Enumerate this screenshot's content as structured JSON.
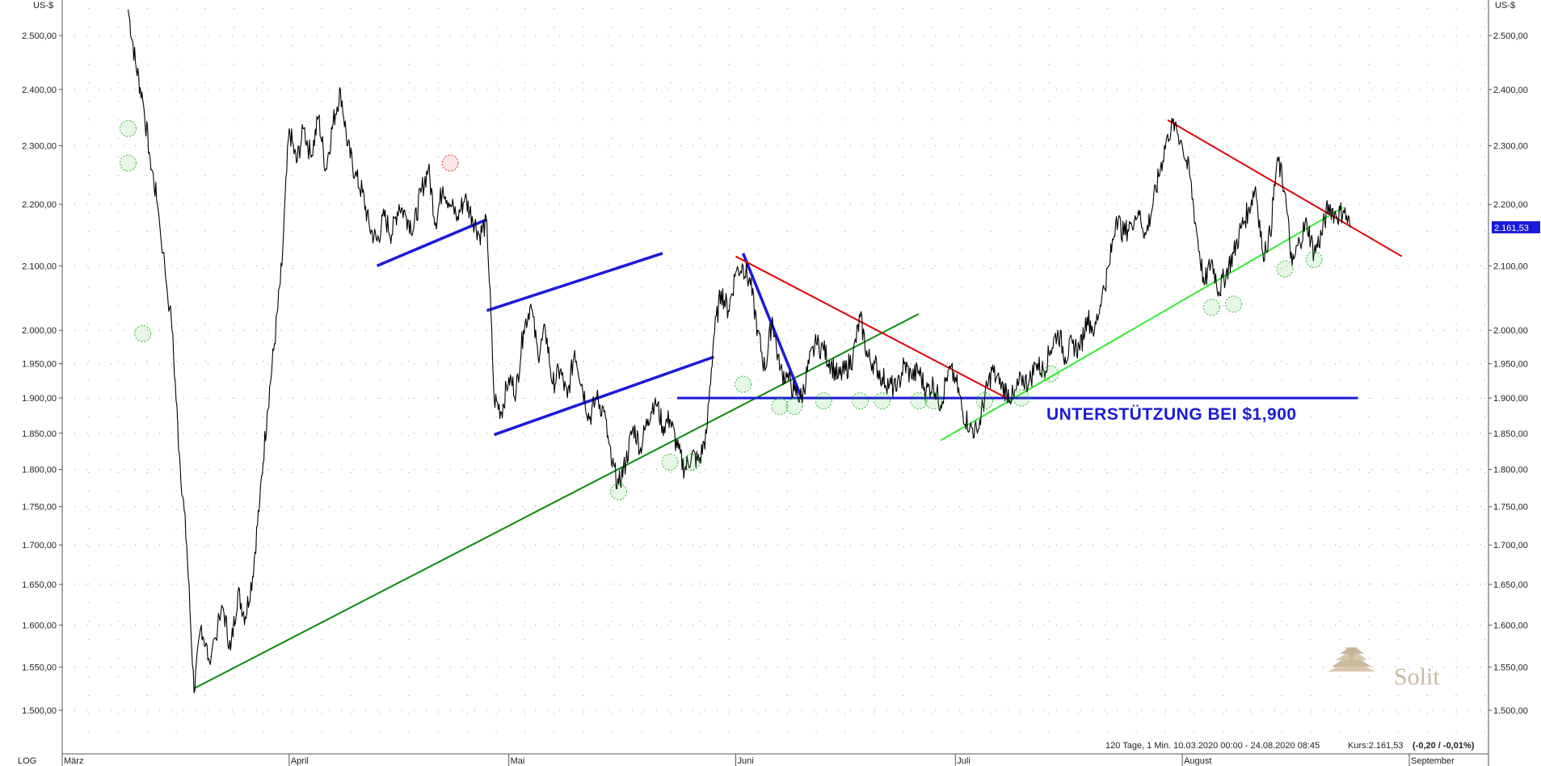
{
  "chart_data": {
    "type": "line",
    "title": "",
    "ylabel": "US-$",
    "ylabel_right": "US-$",
    "y_scale": "log",
    "scale_label": "LOG",
    "ylim": [
      1480,
      2560
    ],
    "y_ticks": [
      1500,
      1550,
      1600,
      1650,
      1700,
      1750,
      1800,
      1850,
      1900,
      1950,
      2000,
      2100,
      2200,
      2300,
      2400,
      2500
    ],
    "y_tick_labels": [
      "1.500,00",
      "1.550,00",
      "1.600,00",
      "1.650,00",
      "1.700,00",
      "1.750,00",
      "1.800,00",
      "1.850,00",
      "1.900,00",
      "1.950,00",
      "2.000,00",
      "2.100,00",
      "2.200,00",
      "2.300,00",
      "2.400,00",
      "2.500,00"
    ],
    "x_range": [
      "2020-03-10",
      "2020-09-02"
    ],
    "x_months": [
      {
        "label": "März",
        "date": "2020-03-01"
      },
      {
        "label": "April",
        "date": "2020-04-01"
      },
      {
        "label": "Mai",
        "date": "2020-05-01"
      },
      {
        "label": "Juni",
        "date": "2020-06-01"
      },
      {
        "label": "Juli",
        "date": "2020-07-01"
      },
      {
        "label": "August",
        "date": "2020-08-01"
      },
      {
        "label": "September",
        "date": "2020-09-01"
      }
    ],
    "grid": true,
    "series": [
      {
        "color": "#000000",
        "points": [
          [
            "2020-03-10",
            2550
          ],
          [
            "2020-03-11",
            2450
          ],
          [
            "2020-03-12",
            2380
          ],
          [
            "2020-03-13",
            2280
          ],
          [
            "2020-03-14",
            2200
          ],
          [
            "2020-03-16",
            2000
          ],
          [
            "2020-03-17",
            1820
          ],
          [
            "2020-03-18",
            1700
          ],
          [
            "2020-03-19",
            1520
          ],
          [
            "2020-03-20",
            1600
          ],
          [
            "2020-03-21",
            1560
          ],
          [
            "2020-03-23",
            1620
          ],
          [
            "2020-03-24",
            1570
          ],
          [
            "2020-03-25",
            1640
          ],
          [
            "2020-03-26",
            1610
          ],
          [
            "2020-03-27",
            1660
          ],
          [
            "2020-03-28",
            1760
          ],
          [
            "2020-03-29",
            1880
          ],
          [
            "2020-03-30",
            1980
          ],
          [
            "2020-03-31",
            2100
          ],
          [
            "2020-04-01",
            2330
          ],
          [
            "2020-04-02",
            2270
          ],
          [
            "2020-04-03",
            2330
          ],
          [
            "2020-04-04",
            2280
          ],
          [
            "2020-04-05",
            2350
          ],
          [
            "2020-04-06",
            2260
          ],
          [
            "2020-04-07",
            2340
          ],
          [
            "2020-04-08",
            2400
          ],
          [
            "2020-04-09",
            2300
          ],
          [
            "2020-04-10",
            2250
          ],
          [
            "2020-04-11",
            2220
          ],
          [
            "2020-04-12",
            2160
          ],
          [
            "2020-04-13",
            2140
          ],
          [
            "2020-04-14",
            2180
          ],
          [
            "2020-04-15",
            2150
          ],
          [
            "2020-04-16",
            2200
          ],
          [
            "2020-04-17",
            2180
          ],
          [
            "2020-04-18",
            2160
          ],
          [
            "2020-04-19",
            2220
          ],
          [
            "2020-04-20",
            2260
          ],
          [
            "2020-04-21",
            2170
          ],
          [
            "2020-04-22",
            2230
          ],
          [
            "2020-04-23",
            2200
          ],
          [
            "2020-04-24",
            2180
          ],
          [
            "2020-04-25",
            2210
          ],
          [
            "2020-04-26",
            2180
          ],
          [
            "2020-04-27",
            2150
          ],
          [
            "2020-04-28",
            2170
          ],
          [
            "2020-04-29",
            1900
          ],
          [
            "2020-04-30",
            1880
          ],
          [
            "2020-05-01",
            1930
          ],
          [
            "2020-05-02",
            1910
          ],
          [
            "2020-05-03",
            2000
          ],
          [
            "2020-05-04",
            2040
          ],
          [
            "2020-05-05",
            1960
          ],
          [
            "2020-05-06",
            2000
          ],
          [
            "2020-05-07",
            1920
          ],
          [
            "2020-05-08",
            1940
          ],
          [
            "2020-05-09",
            1900
          ],
          [
            "2020-05-10",
            1970
          ],
          [
            "2020-05-11",
            1920
          ],
          [
            "2020-05-12",
            1870
          ],
          [
            "2020-05-13",
            1900
          ],
          [
            "2020-05-14",
            1880
          ],
          [
            "2020-05-15",
            1810
          ],
          [
            "2020-05-16",
            1780
          ],
          [
            "2020-05-17",
            1810
          ],
          [
            "2020-05-18",
            1860
          ],
          [
            "2020-05-19",
            1830
          ],
          [
            "2020-05-20",
            1870
          ],
          [
            "2020-05-21",
            1900
          ],
          [
            "2020-05-22",
            1860
          ],
          [
            "2020-05-23",
            1870
          ],
          [
            "2020-05-24",
            1830
          ],
          [
            "2020-05-25",
            1800
          ],
          [
            "2020-05-26",
            1820
          ],
          [
            "2020-05-27",
            1810
          ],
          [
            "2020-05-28",
            1850
          ],
          [
            "2020-05-29",
            1990
          ],
          [
            "2020-05-30",
            2060
          ],
          [
            "2020-05-31",
            2030
          ],
          [
            "2020-06-01",
            2090
          ],
          [
            "2020-06-02",
            2100
          ],
          [
            "2020-06-03",
            2070
          ],
          [
            "2020-06-04",
            2000
          ],
          [
            "2020-06-05",
            1940
          ],
          [
            "2020-06-06",
            2020
          ],
          [
            "2020-06-07",
            1940
          ],
          [
            "2020-06-08",
            1930
          ],
          [
            "2020-06-09",
            1910
          ],
          [
            "2020-06-10",
            1900
          ],
          [
            "2020-06-11",
            1950
          ],
          [
            "2020-06-12",
            1980
          ],
          [
            "2020-06-13",
            1970
          ],
          [
            "2020-06-14",
            1950
          ],
          [
            "2020-06-15",
            1930
          ],
          [
            "2020-06-16",
            1940
          ],
          [
            "2020-06-17",
            1960
          ],
          [
            "2020-06-18",
            2020
          ],
          [
            "2020-06-19",
            1960
          ],
          [
            "2020-06-20",
            1950
          ],
          [
            "2020-06-21",
            1930
          ],
          [
            "2020-06-22",
            1920
          ],
          [
            "2020-06-23",
            1910
          ],
          [
            "2020-06-24",
            1950
          ],
          [
            "2020-06-25",
            1930
          ],
          [
            "2020-06-26",
            1940
          ],
          [
            "2020-06-27",
            1910
          ],
          [
            "2020-06-28",
            1920
          ],
          [
            "2020-06-29",
            1890
          ],
          [
            "2020-06-30",
            1940
          ],
          [
            "2020-07-01",
            1930
          ],
          [
            "2020-07-02",
            1880
          ],
          [
            "2020-07-03",
            1860
          ],
          [
            "2020-07-04",
            1850
          ],
          [
            "2020-07-05",
            1900
          ],
          [
            "2020-07-06",
            1940
          ],
          [
            "2020-07-07",
            1920
          ],
          [
            "2020-07-08",
            1910
          ],
          [
            "2020-07-09",
            1900
          ],
          [
            "2020-07-10",
            1930
          ],
          [
            "2020-07-11",
            1920
          ],
          [
            "2020-07-12",
            1950
          ],
          [
            "2020-07-13",
            1940
          ],
          [
            "2020-07-14",
            1970
          ],
          [
            "2020-07-15",
            2000
          ],
          [
            "2020-07-16",
            1960
          ],
          [
            "2020-07-17",
            1980
          ],
          [
            "2020-07-18",
            1970
          ],
          [
            "2020-07-19",
            2020
          ],
          [
            "2020-07-20",
            2000
          ],
          [
            "2020-07-21",
            2050
          ],
          [
            "2020-07-22",
            2100
          ],
          [
            "2020-07-23",
            2180
          ],
          [
            "2020-07-24",
            2150
          ],
          [
            "2020-07-25",
            2170
          ],
          [
            "2020-07-26",
            2190
          ],
          [
            "2020-07-27",
            2150
          ],
          [
            "2020-07-28",
            2200
          ],
          [
            "2020-07-29",
            2260
          ],
          [
            "2020-07-30",
            2320
          ],
          [
            "2020-07-31",
            2340
          ],
          [
            "2020-08-01",
            2300
          ],
          [
            "2020-08-02",
            2250
          ],
          [
            "2020-08-03",
            2150
          ],
          [
            "2020-08-04",
            2070
          ],
          [
            "2020-08-05",
            2110
          ],
          [
            "2020-08-06",
            2060
          ],
          [
            "2020-08-07",
            2090
          ],
          [
            "2020-08-08",
            2120
          ],
          [
            "2020-08-09",
            2160
          ],
          [
            "2020-08-10",
            2190
          ],
          [
            "2020-08-11",
            2230
          ],
          [
            "2020-08-12",
            2120
          ],
          [
            "2020-08-13",
            2150
          ],
          [
            "2020-08-14",
            2280
          ],
          [
            "2020-08-15",
            2220
          ],
          [
            "2020-08-16",
            2100
          ],
          [
            "2020-08-17",
            2140
          ],
          [
            "2020-08-18",
            2170
          ],
          [
            "2020-08-19",
            2120
          ],
          [
            "2020-08-20",
            2150
          ],
          [
            "2020-08-21",
            2200
          ],
          [
            "2020-08-22",
            2180
          ],
          [
            "2020-08-23",
            2190
          ],
          [
            "2020-08-24",
            2161.53
          ]
        ]
      }
    ],
    "trendlines": [
      {
        "color": "#0a8a0a",
        "from": [
          "2020-03-19",
          1525
        ],
        "to": [
          "2020-06-26",
          2025
        ]
      },
      {
        "color": "#33ee33",
        "from": [
          "2020-06-29",
          1840
        ],
        "to": [
          "2020-08-23",
          2195
        ]
      },
      {
        "color": "#1a1adb",
        "from": [
          "2020-04-13",
          2100
        ],
        "to": [
          "2020-04-28",
          2175
        ]
      },
      {
        "color": "#1a1adb",
        "from": [
          "2020-04-28",
          2030
        ],
        "to": [
          "2020-05-22",
          2120
        ]
      },
      {
        "color": "#1a1adb",
        "from": [
          "2020-04-29",
          1848
        ],
        "to": [
          "2020-05-29",
          1960
        ]
      },
      {
        "color": "#1a1adb",
        "from": [
          "2020-06-02",
          2120
        ],
        "to": [
          "2020-06-10",
          1900
        ]
      },
      {
        "color": "#1a1adb",
        "from": [
          "2020-05-24",
          1900
        ],
        "to": [
          "2020-08-25",
          1900
        ]
      },
      {
        "color": "#e00000",
        "from": [
          "2020-06-01",
          2115
        ],
        "to": [
          "2020-07-08",
          1900
        ]
      },
      {
        "color": "#e00000",
        "from": [
          "2020-07-30",
          2345
        ],
        "to": [
          "2020-08-31",
          2115
        ]
      }
    ],
    "markers": [
      {
        "date": "2020-03-10",
        "value": 2330,
        "color": "green"
      },
      {
        "date": "2020-03-10",
        "value": 2270,
        "color": "green"
      },
      {
        "date": "2020-03-12",
        "value": 1995,
        "color": "green"
      },
      {
        "date": "2020-04-23",
        "value": 2270,
        "color": "red"
      },
      {
        "date": "2020-05-16",
        "value": 1770,
        "color": "green"
      },
      {
        "date": "2020-05-23",
        "value": 1810,
        "color": "green"
      },
      {
        "date": "2020-05-26",
        "value": 1810,
        "color": "green"
      },
      {
        "date": "2020-06-02",
        "value": 1920,
        "color": "green"
      },
      {
        "date": "2020-06-07",
        "value": 1888,
        "color": "green"
      },
      {
        "date": "2020-06-09",
        "value": 1888,
        "color": "green"
      },
      {
        "date": "2020-06-13",
        "value": 1896,
        "color": "green"
      },
      {
        "date": "2020-06-18",
        "value": 1896,
        "color": "green"
      },
      {
        "date": "2020-06-21",
        "value": 1896,
        "color": "green"
      },
      {
        "date": "2020-06-26",
        "value": 1896,
        "color": "green"
      },
      {
        "date": "2020-06-28",
        "value": 1896,
        "color": "green"
      },
      {
        "date": "2020-07-05",
        "value": 1896,
        "color": "green"
      },
      {
        "date": "2020-07-10",
        "value": 1900,
        "color": "green"
      },
      {
        "date": "2020-07-14",
        "value": 1935,
        "color": "green"
      },
      {
        "date": "2020-08-05",
        "value": 2035,
        "color": "green"
      },
      {
        "date": "2020-08-08",
        "value": 2040,
        "color": "green"
      },
      {
        "date": "2020-08-15",
        "value": 2095,
        "color": "green"
      },
      {
        "date": "2020-08-19",
        "value": 2110,
        "color": "green"
      }
    ],
    "annotation": "UNTERSTÜTZUNG  BEI  $1,900",
    "last_price_label": "2.161,53",
    "info": "120 Tage, 1 Min. 10.03.2020 00:00 - 24.08.2020 08:45",
    "info_kurs_label": "Kurs:2.161,53",
    "info_change": "(-0,20 / -0,01%)",
    "watermark": "Solit"
  },
  "colors": {
    "grid_dot": "#9a9a9a",
    "axis": "#555555",
    "price": "#000000",
    "last_price_bg": "#1a1adb",
    "annotation": "#1a1adb",
    "marker_green": "#2fbf2f",
    "marker_red": "#e03030"
  }
}
